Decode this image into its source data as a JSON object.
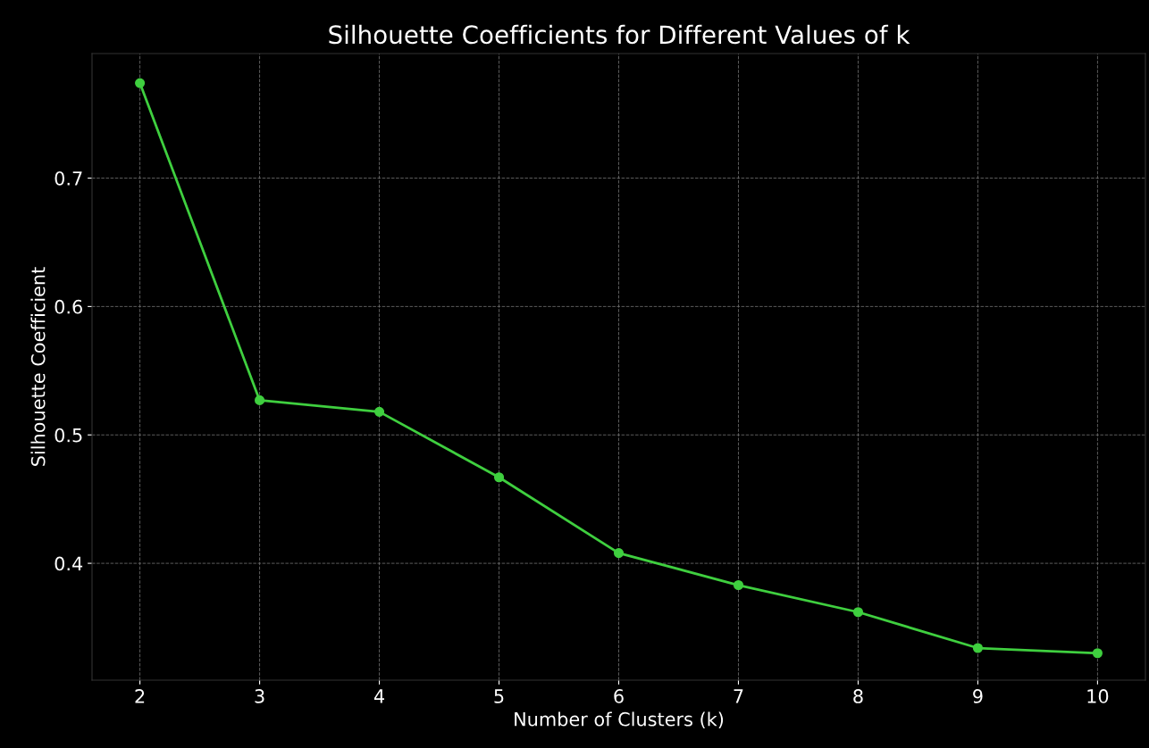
{
  "chart_data": {
    "type": "line",
    "title": "Silhouette Coefficients for Different Values of k",
    "xlabel": "Number of Clusters (k)",
    "ylabel": "Silhouette Coefficient",
    "x": [
      2,
      3,
      4,
      5,
      6,
      7,
      8,
      9,
      10
    ],
    "series": [
      {
        "color": "#3fcf3f",
        "values": [
          0.774,
          0.527,
          0.518,
          0.467,
          0.408,
          0.383,
          0.362,
          0.334,
          0.33
        ]
      }
    ],
    "xlim": [
      1.6,
      10.4
    ],
    "xticks": [
      2,
      3,
      4,
      5,
      6,
      7,
      8,
      9,
      10
    ],
    "ylim": [
      0.309,
      0.797
    ],
    "yticks": [
      0.4,
      0.5,
      0.6,
      0.7
    ],
    "grid": true,
    "marker": "circle",
    "line_style": "solid"
  }
}
